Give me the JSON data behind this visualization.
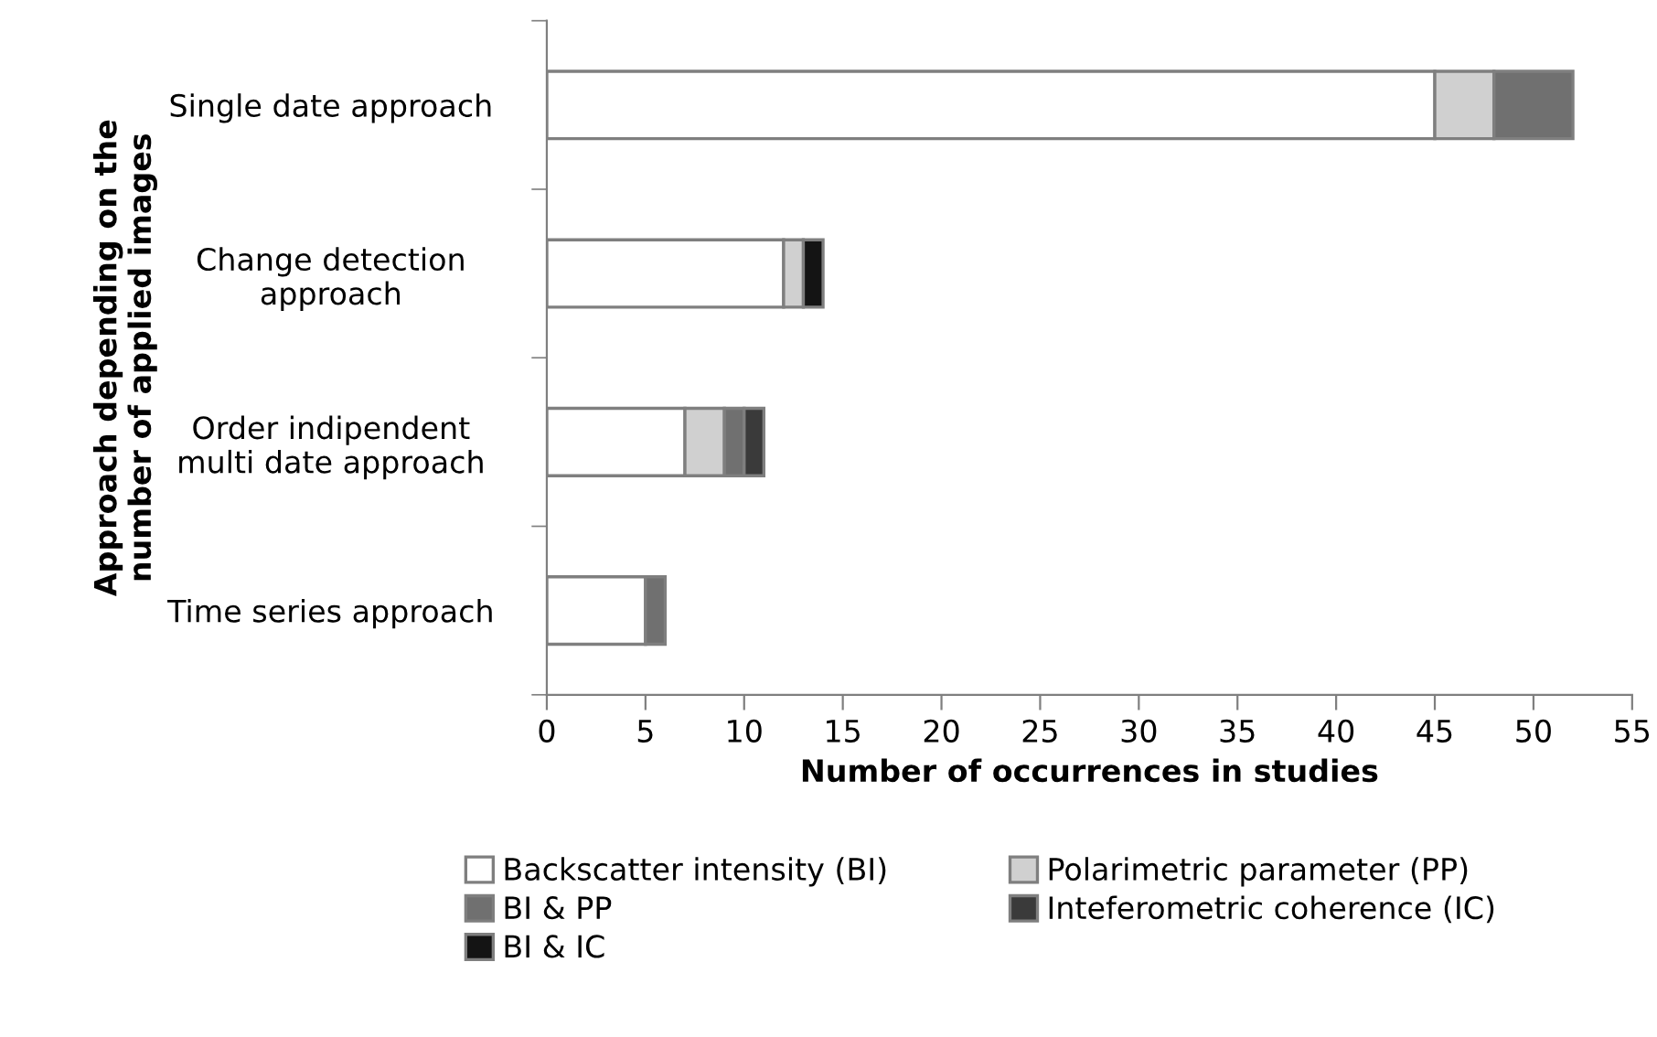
{
  "chart_data": {
    "type": "bar",
    "orientation": "horizontal",
    "stacked": true,
    "xlabel": "Number of occurrences in studies",
    "ylabel": "Approach depending on the\nnumber of applied images",
    "categories": [
      "Single date approach",
      "Change detection\napproach",
      "Order indipendent\nmulti date approach",
      "Time series approach"
    ],
    "series": [
      {
        "name": "Backscatter intensity (BI)",
        "color": "#ffffff",
        "values": [
          45,
          12,
          7,
          5
        ]
      },
      {
        "name": "Polarimetric parameter (PP)",
        "color": "#d0d0d0",
        "values": [
          3,
          1,
          2,
          0
        ]
      },
      {
        "name": "BI & PP",
        "color": "#707070",
        "values": [
          4,
          0,
          1,
          1
        ]
      },
      {
        "name": "Inteferometric coherence (IC)",
        "color": "#3a3a3a",
        "values": [
          0,
          0,
          1,
          0
        ]
      },
      {
        "name": "BI & IC",
        "color": "#141414",
        "values": [
          0,
          1,
          0,
          0
        ]
      }
    ],
    "xlim": [
      0,
      55
    ],
    "xticks": [
      0,
      5,
      10,
      15,
      20,
      25,
      30,
      35,
      40,
      45,
      50,
      55
    ],
    "grid": false,
    "legend": "bottom"
  }
}
